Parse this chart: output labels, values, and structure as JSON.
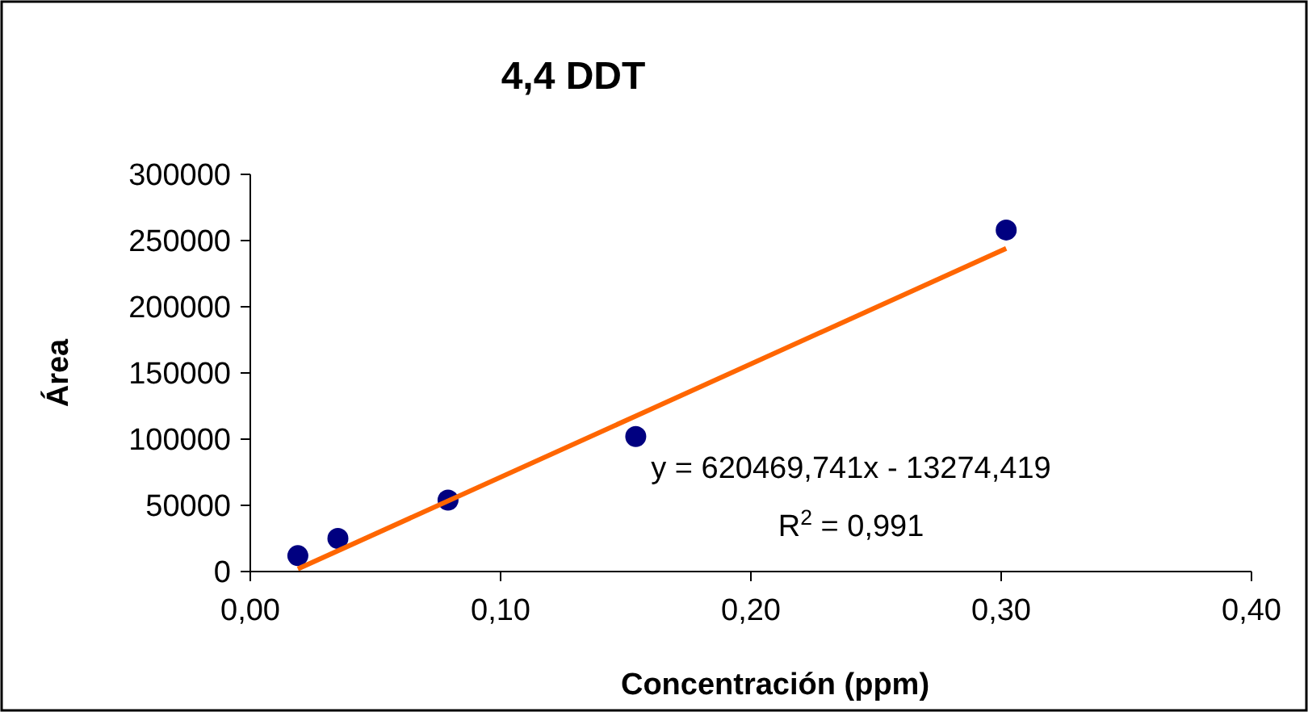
{
  "chart_data": {
    "type": "scatter",
    "title": "4,4 DDT",
    "xlabel": "Concentración (ppm)",
    "ylabel": "Área",
    "xlim": [
      0,
      0.4
    ],
    "xticks": [
      {
        "value": 0,
        "label": "0,00"
      },
      {
        "value": 0.1,
        "label": "0,10"
      },
      {
        "value": 0.2,
        "label": "0,20"
      },
      {
        "value": 0.3,
        "label": "0,30"
      },
      {
        "value": 0.4,
        "label": "0,40"
      }
    ],
    "ylim": [
      0,
      300000
    ],
    "yticks": [
      0,
      50000,
      100000,
      150000,
      200000,
      250000,
      300000
    ],
    "grid": false,
    "series": [
      {
        "color": "#000080",
        "marker": "circle",
        "x": [
          0.019,
          0.035,
          0.079,
          0.154,
          0.302
        ],
        "values": [
          12000,
          25000,
          54000,
          102000,
          258000
        ]
      },
      {
        "type": "line",
        "color": "#ff6600",
        "marker": "none",
        "line_style": "solid",
        "x": [
          0.019,
          0.302
        ],
        "values": [
          2000,
          244000
        ]
      }
    ],
    "annotations": [
      "y = 620469,741x - 13274,419",
      "R$^{2}$ = 0,991"
    ]
  }
}
